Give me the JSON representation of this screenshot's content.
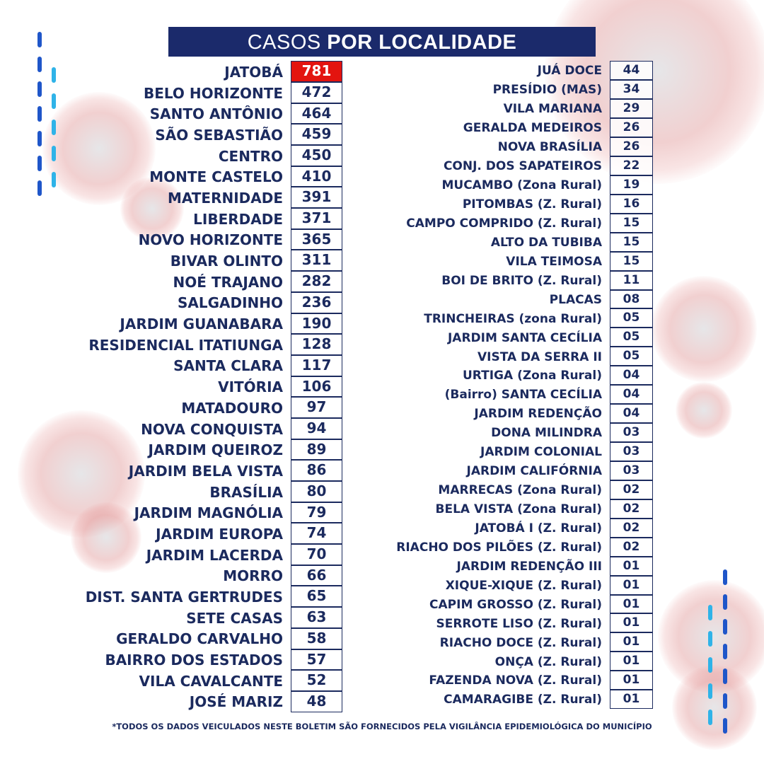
{
  "title": {
    "light": "CASOS ",
    "bold": "POR LOCALIDADE"
  },
  "colors": {
    "navy": "#1b2a6b",
    "highlight": "#e3140f",
    "dash_dark": "#1f56c9",
    "dash_light": "#2fb3e8"
  },
  "left_column": [
    {
      "name": "JATOBÁ",
      "cases": "781"
    },
    {
      "name": "BELO HORIZONTE",
      "cases": "472"
    },
    {
      "name": "SANTO ANTÔNIO",
      "cases": "464"
    },
    {
      "name": "SÃO SEBASTIÃO",
      "cases": "459"
    },
    {
      "name": "CENTRO",
      "cases": "450"
    },
    {
      "name": "MONTE CASTELO",
      "cases": "410"
    },
    {
      "name": "MATERNIDADE",
      "cases": "391"
    },
    {
      "name": "LIBERDADE",
      "cases": "371"
    },
    {
      "name": "NOVO HORIZONTE",
      "cases": "365"
    },
    {
      "name": "BIVAR OLINTO",
      "cases": "311"
    },
    {
      "name": "NOÉ TRAJANO",
      "cases": "282"
    },
    {
      "name": "SALGADINHO",
      "cases": "236"
    },
    {
      "name": "JARDIM GUANABARA",
      "cases": "190"
    },
    {
      "name": "RESIDENCIAL ITATIUNGA",
      "cases": "128"
    },
    {
      "name": "SANTA CLARA",
      "cases": "117"
    },
    {
      "name": "VITÓRIA",
      "cases": "106"
    },
    {
      "name": "MATADOURO",
      "cases": "97"
    },
    {
      "name": "NOVA CONQUISTA",
      "cases": "94"
    },
    {
      "name": "JARDIM QUEIROZ",
      "cases": "89"
    },
    {
      "name": "JARDIM BELA VISTA",
      "cases": "86"
    },
    {
      "name": "BRASÍLIA",
      "cases": "80"
    },
    {
      "name": "JARDIM MAGNÓLIA",
      "cases": "79"
    },
    {
      "name": "JARDIM EUROPA",
      "cases": "74"
    },
    {
      "name": "JARDIM LACERDA",
      "cases": "70"
    },
    {
      "name": "MORRO",
      "cases": "66"
    },
    {
      "name": "DIST. SANTA GERTRUDES",
      "cases": "65"
    },
    {
      "name": "SETE CASAS",
      "cases": "63"
    },
    {
      "name": "GERALDO CARVALHO",
      "cases": "58"
    },
    {
      "name": "BAIRRO DOS ESTADOS",
      "cases": "57"
    },
    {
      "name": "VILA CAVALCANTE",
      "cases": "52"
    },
    {
      "name": "JOSÉ MARIZ",
      "cases": "48"
    }
  ],
  "right_column": [
    {
      "name": "JUÁ DOCE",
      "cases": "44"
    },
    {
      "name": "PRESÍDIO (MAS)",
      "cases": "34"
    },
    {
      "name": "VILA MARIANA",
      "cases": "29"
    },
    {
      "name": "GERALDA MEDEIROS",
      "cases": "26"
    },
    {
      "name": "NOVA BRASÍLIA",
      "cases": "26"
    },
    {
      "name": "CONJ. DOS SAPATEIROS",
      "cases": "22"
    },
    {
      "name": "MUCAMBO (Zona Rural)",
      "cases": "19"
    },
    {
      "name": "PITOMBAS (Z. Rural)",
      "cases": "16"
    },
    {
      "name": "CAMPO COMPRIDO (Z. Rural)",
      "cases": "15"
    },
    {
      "name": "ALTO DA TUBIBA",
      "cases": "15"
    },
    {
      "name": "VILA TEIMOSA",
      "cases": "15"
    },
    {
      "name": "BOI DE BRITO (Z. Rural)",
      "cases": "11"
    },
    {
      "name": "PLACAS",
      "cases": "08"
    },
    {
      "name": "TRINCHEIRAS (zona Rural)",
      "cases": "05"
    },
    {
      "name": "JARDIM SANTA CECÍLIA",
      "cases": "05"
    },
    {
      "name": "VISTA DA SERRA II",
      "cases": "05"
    },
    {
      "name": "URTIGA (Zona Rural)",
      "cases": "04"
    },
    {
      "name": "(Bairro) SANTA CECÍLIA",
      "cases": "04"
    },
    {
      "name": "JARDIM REDENÇÃO",
      "cases": "04"
    },
    {
      "name": "DONA MILINDRA",
      "cases": "03"
    },
    {
      "name": "JARDIM COLONIAL",
      "cases": "03"
    },
    {
      "name": "JARDIM CALIFÓRNIA",
      "cases": "03"
    },
    {
      "name": "MARRECAS (Zona Rural)",
      "cases": "02"
    },
    {
      "name": "BELA VISTA (Zona Rural)",
      "cases": "02"
    },
    {
      "name": "JATOBÁ I (Z. Rural)",
      "cases": "02"
    },
    {
      "name": "RIACHO DOS PILÕES (Z. Rural)",
      "cases": "02"
    },
    {
      "name": "JARDIM REDENÇÃO III",
      "cases": "01"
    },
    {
      "name": "XIQUE-XIQUE (Z. Rural)",
      "cases": "01"
    },
    {
      "name": "CAPIM GROSSO (Z. Rural)",
      "cases": "01"
    },
    {
      "name": "SERROTE LISO (Z. Rural)",
      "cases": "01"
    },
    {
      "name": "RIACHO DOCE (Z. Rural)",
      "cases": "01"
    },
    {
      "name": "ONÇA (Z. Rural)",
      "cases": "01"
    },
    {
      "name": "FAZENDA NOVA (Z. Rural)",
      "cases": "01"
    },
    {
      "name": "CAMARAGIBE (Z. Rural)",
      "cases": "01"
    }
  ],
  "footer": "*TODOS OS DADOS VEICULADOS NESTE BOLETIM SÃO FORNECIDOS PELA VIGILÂNCIA EPIDEMIOLÓGICA DO MUNICÍPIO"
}
